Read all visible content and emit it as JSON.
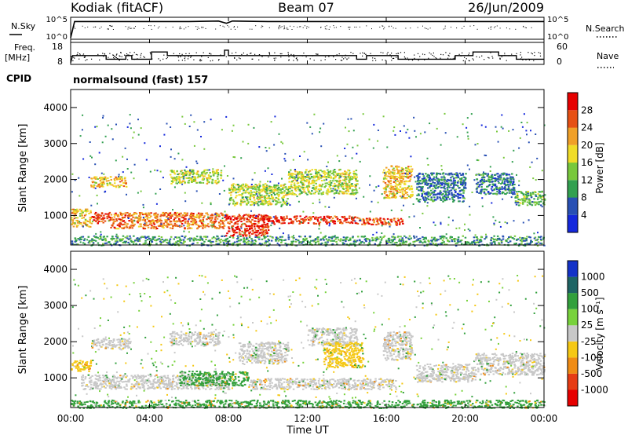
{
  "header": {
    "station": "Kodiak (fitACF)",
    "beam": "Beam 07",
    "date": "26/Jun/2009"
  },
  "status_panel": {
    "left_top_label": "N.Sky",
    "left_top_ticks": [
      "10^5",
      "10^0"
    ],
    "right_top_label": "N.Search",
    "right_top_ticks": [
      "10^5",
      "10^0"
    ],
    "left_mid_label_1": "Freq.",
    "left_mid_label_2": "[MHz]",
    "left_mid_ticks": [
      "18",
      "8"
    ],
    "right_mid_label": "Nave",
    "right_mid_ticks": [
      "60",
      "0"
    ],
    "cpid_label": "CPID",
    "cpid_value": "normalsound (fast) 157"
  },
  "axes": {
    "xlabel": "Time UT",
    "ylabel": "Slant Range [km]",
    "x_ticks": [
      "00:00",
      "04:00",
      "08:00",
      "12:00",
      "16:00",
      "20:00",
      "00:00"
    ],
    "y_ticks": [
      "1000",
      "2000",
      "3000",
      "4000"
    ]
  },
  "colorbars": {
    "power": {
      "label": "Power [dB]",
      "ticks": [
        "4",
        "8",
        "12",
        "16",
        "20",
        "24",
        "28"
      ],
      "colors": [
        "#1428dc",
        "#2850b4",
        "#32a050",
        "#78c83c",
        "#f0dc28",
        "#f0a028",
        "#e65014",
        "#e60000"
      ]
    },
    "velocity": {
      "label": "Velocity [m s⁻¹]",
      "ticks": [
        "1000",
        "500",
        "100",
        "25",
        "-25",
        "-100",
        "-500",
        "-1000"
      ],
      "colors": [
        "#1432c8",
        "#1e6464",
        "#32a03c",
        "#78d23c",
        "#c8c8c8",
        "#f5c814",
        "#f08c14",
        "#e63c14",
        "#e60000"
      ]
    }
  },
  "chart_data": [
    {
      "type": "line",
      "title": "N.Sky / N.Search",
      "x_range_hours": [
        0,
        24
      ],
      "y_scale": "log",
      "ylim": [
        1,
        100000
      ],
      "series": [
        {
          "name": "N.Sky",
          "x": [
            0,
            0.2,
            2,
            4,
            6,
            7.5,
            7.9,
            8.2,
            10,
            12,
            14,
            16,
            18,
            20,
            22,
            24
          ],
          "y": [
            1,
            30000,
            30000,
            30000,
            30000,
            40000,
            10000,
            40000,
            30000,
            30000,
            30000,
            30000,
            30000,
            30000,
            30000,
            30000
          ]
        }
      ]
    },
    {
      "type": "line",
      "title": "Freq. / Nave",
      "x_range_hours": [
        0,
        24
      ],
      "ylim": [
        8,
        18
      ],
      "series": [
        {
          "name": "Freq.",
          "x": [
            0,
            0.1,
            1.8,
            1.8,
            2.8,
            2.8,
            3.1,
            3.1,
            4.1,
            4.1,
            4.9,
            4.9,
            7.8,
            7.8,
            8.0,
            8.0,
            14.5,
            14.5,
            15.0,
            15.0,
            16.6,
            16.6,
            19.5,
            19.5,
            20.4,
            20.4,
            21.7,
            21.7,
            22.6,
            22.6,
            24
          ],
          "y": [
            8,
            12,
            12,
            10,
            10,
            12,
            12,
            10,
            10,
            14,
            14,
            12,
            12,
            15,
            15,
            12,
            12,
            10,
            10,
            12,
            12,
            10,
            10,
            12,
            12,
            14,
            14,
            12,
            12,
            10,
            10
          ]
        }
      ]
    },
    {
      "type": "heatmap",
      "title": "Power [dB]",
      "x_range_hours": [
        0,
        24
      ],
      "ylim_km": [
        180,
        4500
      ],
      "bands": [
        {
          "t0": 0.0,
          "t1": 1.0,
          "r0": 700,
          "r1": 1200,
          "level": 20
        },
        {
          "t0": 1.0,
          "t1": 2.0,
          "r0": 800,
          "r1": 1100,
          "level": 28
        },
        {
          "t0": 2.0,
          "t1": 7.8,
          "r0": 650,
          "r1": 1100,
          "level": 24
        },
        {
          "t0": 7.8,
          "t1": 10.0,
          "r0": 450,
          "r1": 1050,
          "level": 28
        },
        {
          "t0": 10.0,
          "t1": 14.5,
          "r0": 780,
          "r1": 1000,
          "level": 28
        },
        {
          "t0": 14.5,
          "t1": 16.8,
          "r0": 750,
          "r1": 950,
          "level": 26
        },
        {
          "t0": 1.0,
          "t1": 2.8,
          "r0": 1800,
          "r1": 2100,
          "level": 20
        },
        {
          "t0": 5.0,
          "t1": 7.6,
          "r0": 1900,
          "r1": 2300,
          "level": 16
        },
        {
          "t0": 8.0,
          "t1": 11.0,
          "r0": 1300,
          "r1": 1900,
          "level": 16
        },
        {
          "t0": 11.0,
          "t1": 14.5,
          "r0": 1600,
          "r1": 2300,
          "level": 16
        },
        {
          "t0": 15.8,
          "t1": 17.3,
          "r0": 1500,
          "r1": 2400,
          "level": 20
        },
        {
          "t0": 17.5,
          "t1": 20.0,
          "r0": 1400,
          "r1": 2200,
          "level": 8
        },
        {
          "t0": 20.5,
          "t1": 22.5,
          "r0": 1600,
          "r1": 2200,
          "level": 8
        },
        {
          "t0": 22.5,
          "t1": 24.0,
          "r0": 1300,
          "r1": 1700,
          "level": 12
        },
        {
          "t0": 0.0,
          "t1": 24.0,
          "r0": 180,
          "r1": 450,
          "level": 10
        }
      ]
    },
    {
      "type": "heatmap",
      "title": "Velocity [m s⁻¹]",
      "x_range_hours": [
        0,
        24
      ],
      "ylim_km": [
        180,
        4500
      ],
      "bands": [
        {
          "t0": 0.0,
          "t1": 1.0,
          "r0": 1200,
          "r1": 1500,
          "level": -100
        },
        {
          "t0": 0.5,
          "t1": 8.0,
          "r0": 700,
          "r1": 1100,
          "level": 0
        },
        {
          "t0": 5.5,
          "t1": 9.0,
          "r0": 800,
          "r1": 1200,
          "level": 100
        },
        {
          "t0": 9.0,
          "t1": 16.5,
          "r0": 700,
          "r1": 1000,
          "level": 0
        },
        {
          "t0": 1.0,
          "t1": 3.0,
          "r0": 1800,
          "r1": 2100,
          "level": 0
        },
        {
          "t0": 5.0,
          "t1": 7.5,
          "r0": 1900,
          "r1": 2300,
          "level": 0
        },
        {
          "t0": 8.5,
          "t1": 11.0,
          "r0": 1400,
          "r1": 2000,
          "level": 0
        },
        {
          "t0": 12.0,
          "t1": 14.5,
          "r0": 1900,
          "r1": 2400,
          "level": 0
        },
        {
          "t0": 12.8,
          "t1": 14.8,
          "r0": 1300,
          "r1": 2000,
          "level": -100
        },
        {
          "t0": 15.8,
          "t1": 17.3,
          "r0": 1500,
          "r1": 2300,
          "level": 0
        },
        {
          "t0": 17.5,
          "t1": 20.5,
          "r0": 900,
          "r1": 1400,
          "level": 0
        },
        {
          "t0": 20.5,
          "t1": 24.0,
          "r0": 1100,
          "r1": 1700,
          "level": 0
        },
        {
          "t0": 0.0,
          "t1": 24.0,
          "r0": 180,
          "r1": 400,
          "level": 100
        }
      ]
    }
  ]
}
